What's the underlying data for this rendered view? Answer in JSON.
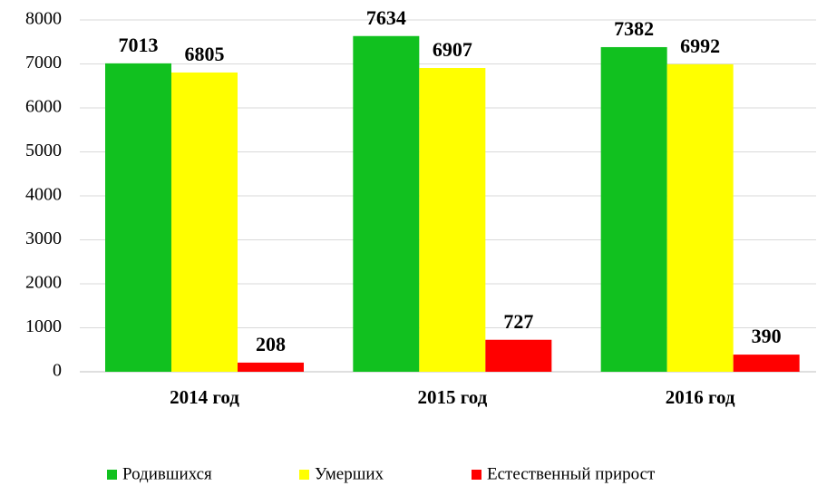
{
  "chart_data": {
    "type": "bar",
    "categories": [
      "2014 год",
      "2015 год",
      "2016 год"
    ],
    "series": [
      {
        "name": "Родившихся",
        "color": "#11c11f",
        "values": [
          7013,
          7634,
          7382
        ]
      },
      {
        "name": "Умерших",
        "color": "#ffff00",
        "values": [
          6805,
          6907,
          6992
        ]
      },
      {
        "name": "Естественный прирост",
        "color": "#ff0000",
        "values": [
          208,
          727,
          390
        ]
      }
    ],
    "ylim": [
      0,
      8000
    ],
    "yticks": [
      0,
      1000,
      2000,
      3000,
      4000,
      5000,
      6000,
      7000,
      8000
    ],
    "grid": true,
    "legend": "bottom"
  }
}
